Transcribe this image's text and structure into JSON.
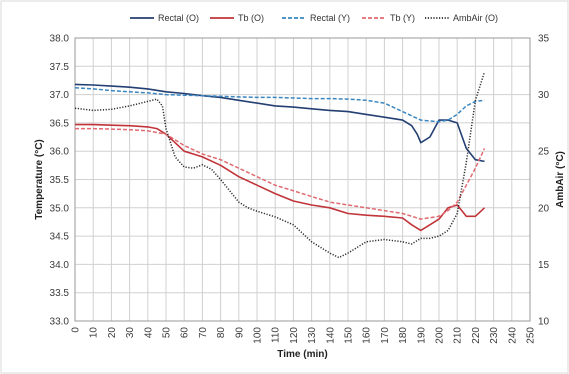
{
  "chart_data": {
    "type": "line",
    "title": "",
    "xlabel": "Time (min)",
    "ylabel": "Temperature (°C)",
    "y2label": "AmbAir (°C)",
    "xlim": [
      0,
      250
    ],
    "ylim": [
      33.0,
      38.0
    ],
    "y2lim": [
      10,
      35
    ],
    "xticks": [
      "0",
      "10",
      "20",
      "30",
      "40",
      "50",
      "60",
      "70",
      "80",
      "90",
      "100",
      "110",
      "120",
      "130",
      "140",
      "150",
      "160",
      "170",
      "180",
      "190",
      "200",
      "210",
      "220",
      "230",
      "240",
      "250"
    ],
    "yticks": [
      "33.0",
      "33.5",
      "34.0",
      "34.5",
      "35.0",
      "35.5",
      "36.0",
      "36.5",
      "37.0",
      "37.5",
      "38.0"
    ],
    "y2ticks": [
      "10",
      "15",
      "20",
      "25",
      "30",
      "35"
    ],
    "grid": true,
    "legend_position": "top",
    "series": [
      {
        "name": "Rectal (O)",
        "axis": "left",
        "color": "#243f73",
        "style": "solid",
        "x": [
          0,
          10,
          20,
          30,
          40,
          50,
          60,
          70,
          80,
          90,
          100,
          110,
          120,
          130,
          140,
          150,
          160,
          170,
          180,
          185,
          188,
          190,
          195,
          200,
          205,
          210,
          215,
          220,
          225
        ],
        "y": [
          37.18,
          37.17,
          37.15,
          37.13,
          37.1,
          37.05,
          37.02,
          36.98,
          36.95,
          36.9,
          36.85,
          36.8,
          36.78,
          36.75,
          36.72,
          36.7,
          36.65,
          36.6,
          36.55,
          36.45,
          36.3,
          36.15,
          36.25,
          36.55,
          36.55,
          36.5,
          36.05,
          35.85,
          35.82
        ]
      },
      {
        "name": "Tb (O)",
        "axis": "left",
        "color": "#c0343a",
        "style": "solid",
        "x": [
          0,
          10,
          20,
          30,
          40,
          45,
          50,
          55,
          60,
          65,
          70,
          80,
          90,
          100,
          110,
          120,
          130,
          140,
          150,
          160,
          170,
          180,
          185,
          190,
          195,
          200,
          205,
          210,
          215,
          220,
          225
        ],
        "y": [
          36.47,
          36.47,
          36.46,
          36.45,
          36.43,
          36.4,
          36.3,
          36.15,
          36.0,
          35.95,
          35.9,
          35.75,
          35.55,
          35.4,
          35.25,
          35.12,
          35.05,
          35.0,
          34.9,
          34.87,
          34.85,
          34.82,
          34.7,
          34.6,
          34.7,
          34.8,
          35.0,
          35.05,
          34.85,
          34.85,
          35.0
        ]
      },
      {
        "name": "Rectal (Y)",
        "axis": "left",
        "color": "#3a86c0",
        "style": "dashed",
        "x": [
          0,
          10,
          20,
          30,
          40,
          50,
          60,
          70,
          80,
          90,
          100,
          110,
          120,
          130,
          140,
          150,
          160,
          170,
          180,
          190,
          200,
          205,
          210,
          215,
          220,
          225
        ],
        "y": [
          37.12,
          37.1,
          37.07,
          37.05,
          37.03,
          37.0,
          36.99,
          36.98,
          36.97,
          36.96,
          36.95,
          36.95,
          36.94,
          36.93,
          36.93,
          36.92,
          36.9,
          36.85,
          36.7,
          36.55,
          36.52,
          36.55,
          36.65,
          36.8,
          36.88,
          36.9
        ]
      },
      {
        "name": "Tb (Y)",
        "axis": "left",
        "color": "#e06a70",
        "style": "dashed",
        "x": [
          0,
          10,
          20,
          30,
          40,
          50,
          60,
          70,
          80,
          90,
          100,
          110,
          120,
          130,
          140,
          150,
          160,
          170,
          180,
          190,
          200,
          205,
          210,
          215,
          220,
          225
        ],
        "y": [
          36.4,
          36.4,
          36.39,
          36.38,
          36.36,
          36.3,
          36.1,
          35.95,
          35.85,
          35.7,
          35.55,
          35.4,
          35.3,
          35.2,
          35.1,
          35.05,
          35.0,
          34.95,
          34.9,
          34.8,
          34.85,
          34.95,
          35.1,
          35.4,
          35.7,
          36.05
        ]
      },
      {
        "name": "AmbAir (O)",
        "axis": "right",
        "color": "#2b2b2b",
        "style": "dotted",
        "x": [
          0,
          10,
          20,
          30,
          40,
          45,
          48,
          50,
          55,
          60,
          65,
          70,
          75,
          80,
          85,
          90,
          95,
          100,
          110,
          120,
          130,
          140,
          145,
          150,
          160,
          170,
          180,
          185,
          190,
          195,
          200,
          205,
          210,
          215,
          220,
          225
        ],
        "y": [
          28.8,
          28.6,
          28.7,
          29.0,
          29.4,
          29.6,
          29.0,
          27.0,
          24.5,
          23.6,
          23.5,
          23.8,
          23.4,
          22.5,
          21.5,
          20.5,
          20.0,
          19.7,
          19.2,
          18.5,
          17.0,
          16.0,
          15.6,
          16.0,
          17.0,
          17.2,
          17.0,
          16.8,
          17.3,
          17.3,
          17.5,
          18.0,
          19.5,
          24.0,
          29.5,
          32.0
        ]
      }
    ]
  }
}
